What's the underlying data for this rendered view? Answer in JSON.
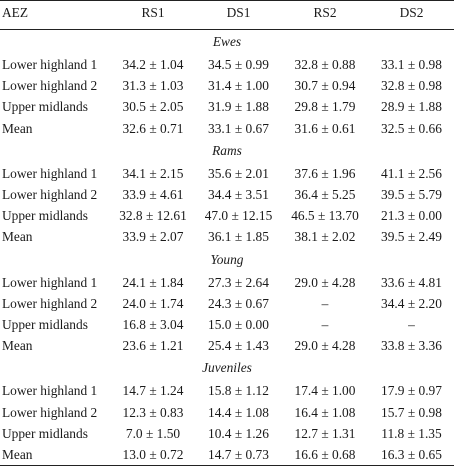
{
  "headers": [
    "AEZ",
    "RS1",
    "DS1",
    "RS2",
    "DS2"
  ],
  "sections": [
    {
      "title": "Ewes",
      "rows": [
        {
          "label": "Lower highland 1",
          "values": [
            "34.2 ± 1.04",
            "34.5 ± 0.99",
            "32.8 ± 0.88",
            "33.1 ± 0.98"
          ]
        },
        {
          "label": "Lower highland 2",
          "values": [
            "31.3 ± 1.03",
            "31.4 ± 1.00",
            "30.7 ± 0.94",
            "32.8 ± 0.98"
          ]
        },
        {
          "label": "Upper midlands",
          "values": [
            "30.5 ± 2.05",
            "31.9 ± 1.88",
            "29.8 ± 1.79",
            "28.9 ± 1.88"
          ]
        },
        {
          "label": "Mean",
          "values": [
            "32.6 ± 0.71",
            "33.1 ± 0.67",
            "31.6 ± 0.61",
            "32.5 ± 0.66"
          ]
        }
      ]
    },
    {
      "title": "Rams",
      "rows": [
        {
          "label": "Lower highland 1",
          "values": [
            "34.1 ± 2.15",
            "35.6 ± 2.01",
            "37.6 ± 1.96",
            "41.1 ± 2.56"
          ]
        },
        {
          "label": "Lower highland 2",
          "values": [
            "33.9 ± 4.61",
            "34.4 ± 3.51",
            "36.4 ± 5.25",
            "39.5 ± 5.79"
          ]
        },
        {
          "label": "Upper midlands",
          "values": [
            "32.8 ± 12.61",
            "47.0 ± 12.15",
            "46.5 ± 13.70",
            "21.3 ± 0.00"
          ]
        },
        {
          "label": "Mean",
          "values": [
            "33.9 ± 2.07",
            "36.1 ± 1.85",
            "38.1 ± 2.02",
            "39.5 ± 2.49"
          ]
        }
      ]
    },
    {
      "title": "Young",
      "rows": [
        {
          "label": "Lower highland 1",
          "values": [
            "24.1 ± 1.84",
            "27.3 ± 2.64",
            "29.0 ± 4.28",
            "33.6 ± 4.81"
          ]
        },
        {
          "label": "Lower highland 2",
          "values": [
            "24.0 ± 1.74",
            "24.3 ± 0.67",
            "–",
            "34.4 ± 2.20"
          ]
        },
        {
          "label": "Upper midlands",
          "values": [
            "16.8 ± 3.04",
            "15.0 ± 0.00",
            "–",
            "–"
          ]
        },
        {
          "label": "Mean",
          "values": [
            "23.6 ± 1.21",
            "25.4 ± 1.43",
            "29.0 ± 4.28",
            "33.8 ± 3.36"
          ]
        }
      ]
    },
    {
      "title": "Juveniles",
      "rows": [
        {
          "label": "Lower highland 1",
          "values": [
            "14.7 ± 1.24",
            "15.8 ± 1.12",
            "17.4 ± 1.00",
            "17.9 ± 0.97"
          ]
        },
        {
          "label": "Lower highland 2",
          "values": [
            "12.3 ± 0.83",
            "14.4 ± 1.08",
            "16.4 ± 1.08",
            "15.7 ± 0.98"
          ]
        },
        {
          "label": "Upper midlands",
          "values": [
            "7.0 ± 1.50",
            "10.4 ± 1.26",
            "12.7 ± 1.31",
            "11.8 ± 1.35"
          ]
        },
        {
          "label": "Mean",
          "values": [
            "13.0 ± 0.72",
            "14.7 ± 0.73",
            "16.6 ± 0.68",
            "16.3 ± 0.65"
          ]
        }
      ]
    }
  ]
}
